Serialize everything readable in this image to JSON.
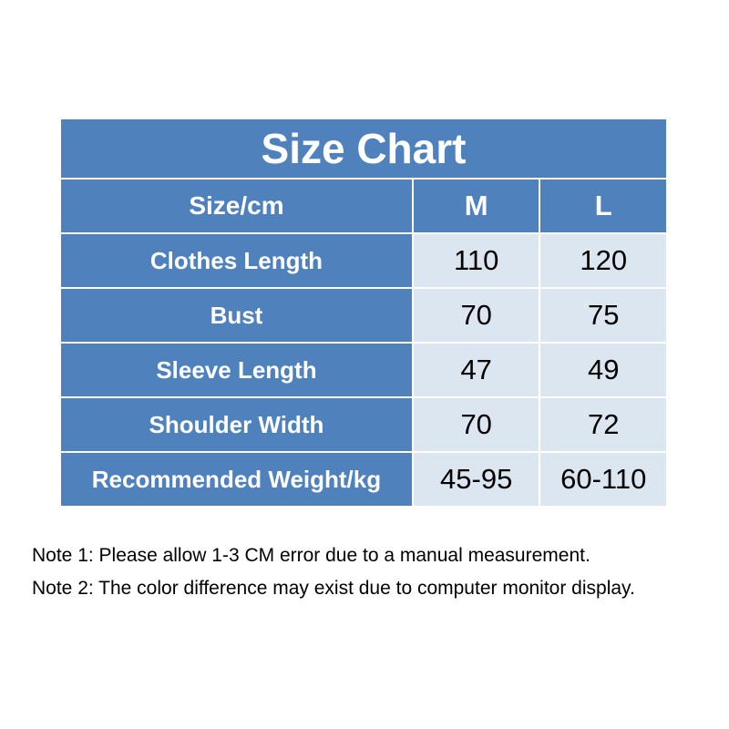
{
  "title": "Size Chart",
  "header": [
    "Size/cm",
    "M",
    "L"
  ],
  "rows": [
    {
      "label": "Clothes Length",
      "values": [
        "110",
        "120"
      ]
    },
    {
      "label": "Bust",
      "values": [
        "70",
        "75"
      ]
    },
    {
      "label": "Sleeve Length",
      "values": [
        "47",
        "49"
      ]
    },
    {
      "label": "Shoulder Width",
      "values": [
        "70",
        "72"
      ]
    },
    {
      "label": "Recommended Weight/kg",
      "values": [
        "45-95",
        "60-110"
      ]
    }
  ],
  "notes": [
    "Note 1: Please allow 1-3 CM error due to a manual measurement.",
    "Note 2: The color difference may exist due to computer monitor display."
  ],
  "colors": {
    "header_bg": "#4f81bd",
    "cell_bg": "#dce6f1"
  }
}
